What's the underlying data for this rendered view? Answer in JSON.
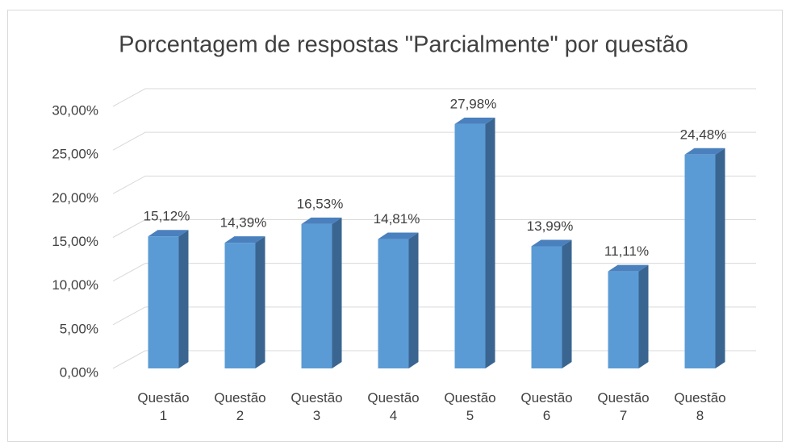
{
  "chart_data": {
    "type": "bar3d",
    "title": "Porcentagem de respostas \"Parcialmente\" por questão",
    "categories": [
      "Questão 1",
      "Questão 2",
      "Questão 3",
      "Questão 4",
      "Questão 5",
      "Questão 6",
      "Questão 7",
      "Questão 8"
    ],
    "values": [
      15.12,
      14.39,
      16.53,
      14.81,
      27.98,
      13.99,
      11.11,
      24.48
    ],
    "value_labels": [
      "15,12%",
      "14,39%",
      "16,53%",
      "14,81%",
      "27,98%",
      "13,99%",
      "11,11%",
      "24,48%"
    ],
    "color": "#5b9bd5",
    "ylim": [
      0,
      30
    ],
    "yticks": [
      {
        "value": 0,
        "label": "0,00%"
      },
      {
        "value": 5,
        "label": "5,00%"
      },
      {
        "value": 10,
        "label": "10,00%"
      },
      {
        "value": 15,
        "label": "15,00%"
      },
      {
        "value": 20,
        "label": "20,00%"
      },
      {
        "value": 25,
        "label": "25,00%"
      },
      {
        "value": 30,
        "label": "30,00%"
      }
    ],
    "grid": true
  }
}
